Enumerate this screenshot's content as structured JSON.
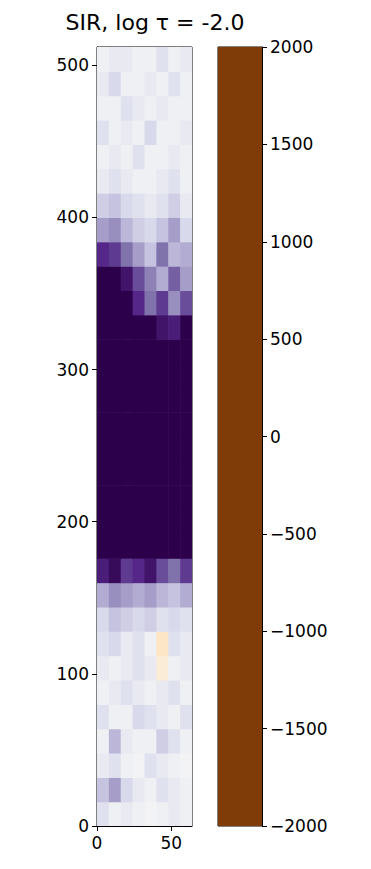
{
  "chart_data": {
    "type": "heatmap",
    "title": "SIR, log τ = -2.0",
    "xlim": [
      0,
      64
    ],
    "ylim": [
      0,
      512
    ],
    "xticks": [
      0,
      50
    ],
    "yticks": [
      0,
      100,
      200,
      300,
      400,
      500
    ],
    "grid": false,
    "x": [
      4,
      12,
      20,
      28,
      36,
      44,
      52,
      60
    ],
    "y": [
      8,
      24,
      40,
      56,
      72,
      88,
      104,
      120,
      136,
      152,
      168,
      184,
      200,
      216,
      232,
      248,
      264,
      280,
      296,
      312,
      328,
      344,
      360,
      376,
      392,
      408,
      424,
      440,
      456,
      472,
      488,
      504
    ],
    "z": [
      [
        300,
        100,
        200,
        100,
        50,
        100,
        200,
        100
      ],
      [
        600,
        900,
        400,
        200,
        100,
        300,
        200,
        100
      ],
      [
        200,
        300,
        100,
        50,
        300,
        200,
        100,
        50
      ],
      [
        100,
        700,
        200,
        100,
        100,
        500,
        300,
        100
      ],
      [
        300,
        100,
        100,
        400,
        300,
        200,
        100,
        300
      ],
      [
        100,
        200,
        300,
        200,
        100,
        200,
        300,
        100
      ],
      [
        200,
        100,
        200,
        300,
        200,
        -200,
        100,
        200
      ],
      [
        300,
        400,
        200,
        300,
        100,
        -300,
        300,
        200
      ],
      [
        400,
        600,
        500,
        400,
        500,
        300,
        400,
        300
      ],
      [
        800,
        1000,
        900,
        800,
        900,
        700,
        600,
        800
      ],
      [
        1700,
        1900,
        1500,
        1600,
        1800,
        1400,
        1200,
        1500
      ],
      [
        2000,
        2000,
        2000,
        2000,
        2000,
        2000,
        2000,
        2000
      ],
      [
        2000,
        2000,
        2000,
        2000,
        2000,
        2000,
        2000,
        2000
      ],
      [
        2000,
        2000,
        2000,
        2000,
        2000,
        2000,
        2000,
        2000
      ],
      [
        2000,
        2000,
        2000,
        2000,
        2000,
        2000,
        2000,
        2000
      ],
      [
        2000,
        2000,
        2000,
        2000,
        2000,
        2000,
        2000,
        2000
      ],
      [
        2000,
        2000,
        2000,
        2000,
        2000,
        2000,
        2000,
        2000
      ],
      [
        2000,
        2000,
        2000,
        2000,
        2000,
        2000,
        2000,
        2000
      ],
      [
        2000,
        2000,
        2000,
        2000,
        2000,
        2000,
        2000,
        2000
      ],
      [
        2000,
        2000,
        2000,
        2000,
        2000,
        2000,
        2000,
        2000
      ],
      [
        2000,
        2000,
        2000,
        2000,
        2000,
        1800,
        1700,
        2000
      ],
      [
        2000,
        2000,
        2000,
        1600,
        1200,
        1500,
        1000,
        1400
      ],
      [
        2000,
        2000,
        1800,
        1400,
        1100,
        800,
        1300,
        900
      ],
      [
        1600,
        1500,
        1200,
        900,
        600,
        1200,
        700,
        800
      ],
      [
        900,
        1000,
        700,
        500,
        400,
        600,
        900,
        400
      ],
      [
        500,
        600,
        400,
        300,
        200,
        300,
        500,
        200
      ],
      [
        200,
        300,
        200,
        100,
        100,
        200,
        300,
        100
      ],
      [
        100,
        200,
        100,
        300,
        100,
        100,
        200,
        100
      ],
      [
        300,
        100,
        200,
        100,
        400,
        100,
        100,
        200
      ],
      [
        100,
        100,
        300,
        200,
        100,
        200,
        100,
        100
      ],
      [
        200,
        400,
        100,
        100,
        200,
        100,
        300,
        100
      ],
      [
        100,
        200,
        200,
        100,
        100,
        300,
        100,
        200
      ]
    ],
    "colorbar": {
      "range": [
        -2000,
        2000
      ],
      "ticks": [
        {
          "value": -2000,
          "label": "−2000"
        },
        {
          "value": -1500,
          "label": "−1500"
        },
        {
          "value": -1000,
          "label": "−1000"
        },
        {
          "value": -500,
          "label": "−500"
        },
        0,
        500,
        1000,
        1500,
        2000
      ]
    }
  }
}
